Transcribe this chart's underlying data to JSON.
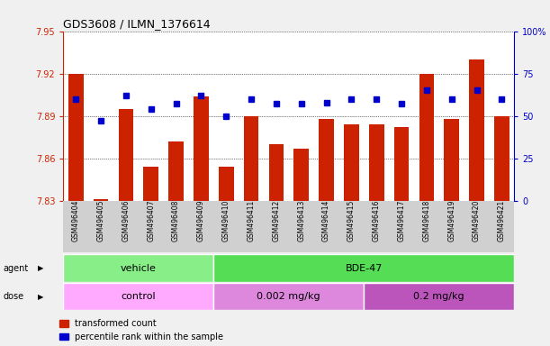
{
  "title": "GDS3608 / ILMN_1376614",
  "samples": [
    "GSM496404",
    "GSM496405",
    "GSM496406",
    "GSM496407",
    "GSM496408",
    "GSM496409",
    "GSM496410",
    "GSM496411",
    "GSM496412",
    "GSM496413",
    "GSM496414",
    "GSM496415",
    "GSM496416",
    "GSM496417",
    "GSM496418",
    "GSM496419",
    "GSM496420",
    "GSM496421"
  ],
  "red_values": [
    7.92,
    7.831,
    7.895,
    7.854,
    7.872,
    7.904,
    7.854,
    7.89,
    7.87,
    7.867,
    7.888,
    7.884,
    7.884,
    7.882,
    7.92,
    7.888,
    7.93,
    7.89
  ],
  "blue_pct": [
    60,
    47,
    62,
    54,
    57,
    62,
    50,
    60,
    57,
    57,
    58,
    60,
    60,
    57,
    65,
    60,
    65,
    60
  ],
  "ymin": 7.83,
  "ymax": 7.95,
  "yticks": [
    7.83,
    7.86,
    7.89,
    7.92,
    7.95
  ],
  "y2ticks": [
    0,
    25,
    50,
    75,
    100
  ],
  "bar_color": "#cc2200",
  "dot_color": "#0000cc",
  "plot_bg": "#ffffff",
  "xtick_bg": "#d0d0d0",
  "agent_vehicle_color": "#88ee88",
  "agent_bde_color": "#55dd55",
  "dose_control_color": "#ffaaff",
  "dose_002_color": "#dd88dd",
  "dose_02_color": "#bb55bb",
  "agent_row_label": "agent",
  "dose_row_label": "dose",
  "vehicle_label": "vehicle",
  "bde_label": "BDE-47",
  "control_label": "control",
  "dose1_label": "0.002 mg/kg",
  "dose2_label": "0.2 mg/kg",
  "legend_red": "transformed count",
  "legend_blue": "percentile rank within the sample",
  "n_vehicle": 6,
  "n_bde_dose1": 6,
  "n_bde_dose2": 6,
  "left_axis_color": "#cc2200",
  "right_axis_color": "#0000cc",
  "fig_bg": "#f0f0f0"
}
